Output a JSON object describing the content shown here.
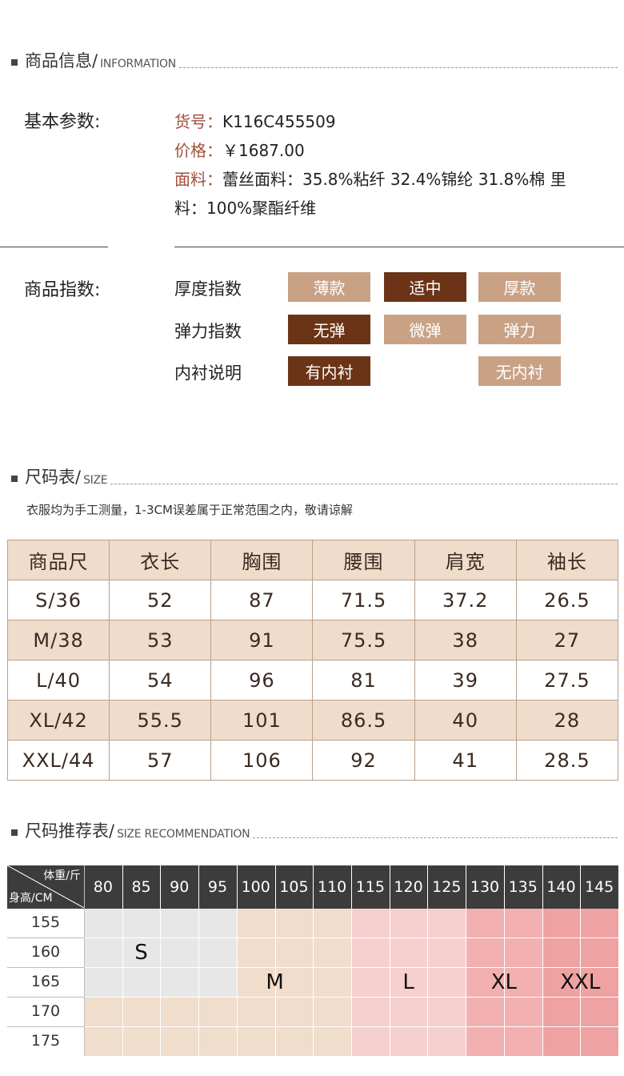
{
  "info_section": {
    "title_cn": "商品信息/",
    "title_en": "INFORMATION"
  },
  "basic": {
    "label": "基本参数:",
    "item_no_key": "货号：",
    "item_no": "K116C455509",
    "price_key": "价格：",
    "price": "￥1687.00",
    "fabric_key": "面料：",
    "fabric_line1": "蕾丝面料：35.8%粘纤 32.4%锦纶 31.8%棉 里",
    "fabric_line2": "料：100%聚酯纤维"
  },
  "indices": {
    "label": "商品指数:",
    "rows": [
      {
        "name": "厚度指数",
        "options": [
          {
            "text": "薄款",
            "active": false
          },
          {
            "text": "适中",
            "active": true
          },
          {
            "text": "厚款",
            "active": false
          }
        ]
      },
      {
        "name": "弹力指数",
        "options": [
          {
            "text": "无弹",
            "active": true
          },
          {
            "text": "微弹",
            "active": false
          },
          {
            "text": "弹力",
            "active": false
          }
        ]
      },
      {
        "name": "内衬说明",
        "options": [
          {
            "text": "有内衬",
            "active": true
          },
          {
            "text": "无内衬",
            "active": false
          }
        ]
      }
    ]
  },
  "size_section": {
    "title_cn": "尺码表/",
    "title_en": "SIZE",
    "note": "衣服均为手工测量，1-3CM误差属于正常范围之内，敬请谅解"
  },
  "size_table": {
    "headers": [
      "商品尺",
      "衣长",
      "胸围",
      "腰围",
      "肩宽",
      "袖长"
    ],
    "rows": [
      [
        "S/36",
        "52",
        "87",
        "71.5",
        "37.2",
        "26.5"
      ],
      [
        "M/38",
        "53",
        "91",
        "75.5",
        "38",
        "27"
      ],
      [
        "L/40",
        "54",
        "96",
        "81",
        "39",
        "27.5"
      ],
      [
        "XL/42",
        "55.5",
        "101",
        "86.5",
        "40",
        "28"
      ],
      [
        "XXL/44",
        "57",
        "106",
        "92",
        "41",
        "28.5"
      ]
    ]
  },
  "rec_section": {
    "title_cn": "尺码推荐表/",
    "title_en": "SIZE RECOMMENDATION"
  },
  "rec_table": {
    "corner_top": "体重/斤",
    "corner_bottom": "身高/CM",
    "weights": [
      "80",
      "85",
      "90",
      "95",
      "100",
      "105",
      "110",
      "115",
      "120",
      "125",
      "130",
      "135",
      "140",
      "145"
    ],
    "heights": [
      "155",
      "160",
      "165",
      "170",
      "175"
    ],
    "sizes": [
      {
        "label": "S",
        "color": "#e7e7e7"
      },
      {
        "label": "M",
        "color": "#f1ddcc"
      },
      {
        "label": "L",
        "color": "#f6cfcf"
      },
      {
        "label": "XL",
        "color": "#f2b0b0"
      },
      {
        "label": "XXL",
        "color": "#eea2a2"
      }
    ],
    "grid": [
      [
        "S",
        "S",
        "S",
        "S",
        "M",
        "M",
        "M",
        "L",
        "L",
        "L",
        "XL",
        "XL",
        "XXL",
        "XXL"
      ],
      [
        "S",
        "S",
        "S",
        "S",
        "M",
        "M",
        "M",
        "L",
        "L",
        "L",
        "XL",
        "XL",
        "XXL",
        "XXL"
      ],
      [
        "S",
        "S",
        "S",
        "S",
        "M",
        "M",
        "M",
        "L",
        "L",
        "L",
        "XL",
        "XL",
        "XXL",
        "XXL"
      ],
      [
        "M",
        "M",
        "M",
        "M",
        "M",
        "M",
        "M",
        "L",
        "L",
        "L",
        "XL",
        "XL",
        "XXL",
        "XXL"
      ],
      [
        "M",
        "M",
        "M",
        "M",
        "M",
        "M",
        "M",
        "L",
        "L",
        "L",
        "XL",
        "XL",
        "XXL",
        "XXL"
      ]
    ]
  }
}
